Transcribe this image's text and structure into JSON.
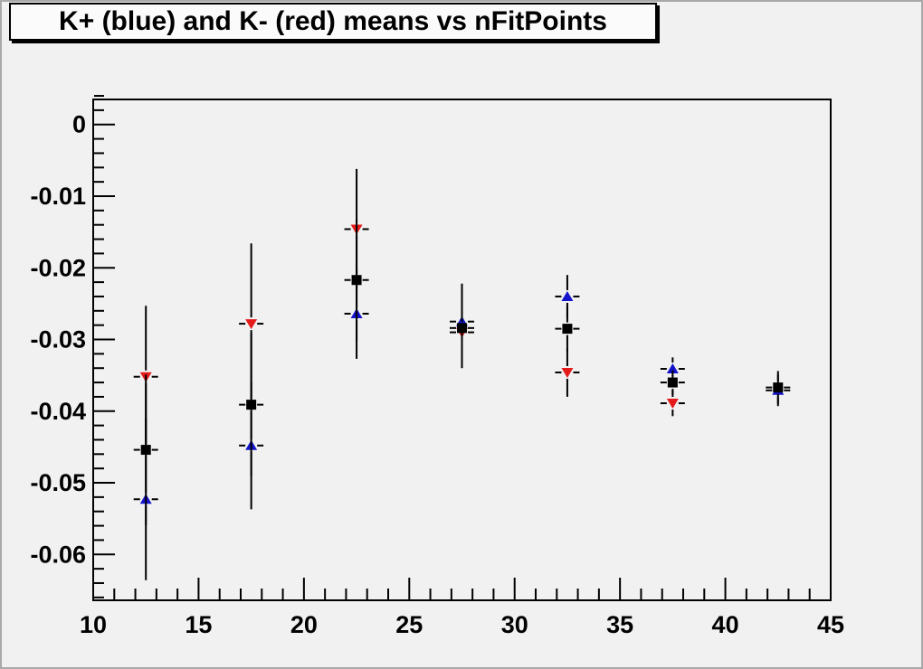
{
  "colors": {
    "canvas_bg": "#f1f1f1",
    "canvas_border": "#a9a9a9",
    "frame_line": "#000000",
    "title_bg": "#fbfbfb",
    "title_text": "#000000",
    "axis_text": "#000000",
    "error_bar": "#000000",
    "marker_blue": "#1414cc",
    "marker_red": "#e51b1b",
    "marker_black": "#000000"
  },
  "chart_data": {
    "type": "scatter",
    "title": "K+ (blue) and K- (red) means vs nFitPoints",
    "xlabel": "",
    "ylabel": "",
    "grid": false,
    "legend": "none",
    "x_axis": {
      "min": 10,
      "max": 45,
      "major_ticks": [
        10,
        15,
        20,
        25,
        30,
        35,
        40,
        45
      ],
      "major_tick_labels": [
        "10",
        "15",
        "20",
        "25",
        "30",
        "35",
        "40",
        "45"
      ],
      "minor_tick_step": 1
    },
    "y_axis": {
      "min": -0.0664,
      "max": 0.0035,
      "major_ticks": [
        0,
        -0.01,
        -0.02,
        -0.03,
        -0.04,
        -0.05,
        -0.06
      ],
      "major_tick_labels": [
        "0",
        "-0.01",
        "-0.02",
        "-0.03",
        "-0.04",
        "-0.05",
        "-0.06"
      ],
      "minor_tick_step": 0.002
    },
    "xerr": 0.55,
    "series": [
      {
        "name": "K+ (blue)",
        "marker": "triangle-up",
        "color_key": "marker_blue",
        "points": [
          {
            "x": 12.5,
            "y": -0.0523,
            "yerr": 0.0113
          },
          {
            "x": 17.5,
            "y": -0.0448,
            "yerr": 0.0089
          },
          {
            "x": 22.5,
            "y": -0.0264,
            "yerr": 0.0063
          },
          {
            "x": 27.5,
            "y": -0.0275,
            "yerr": 0.0053
          },
          {
            "x": 32.5,
            "y": -0.024,
            "yerr": 0.003
          },
          {
            "x": 37.5,
            "y": -0.0341,
            "yerr": 0.0016
          },
          {
            "x": 42.5,
            "y": -0.0371,
            "yerr": 0.0022
          }
        ]
      },
      {
        "name": "K- (red)",
        "marker": "triangle-down",
        "color_key": "marker_red",
        "points": [
          {
            "x": 12.5,
            "y": -0.0352,
            "yerr": 0.0099
          },
          {
            "x": 17.5,
            "y": -0.0278,
            "yerr": 0.0112
          },
          {
            "x": 22.5,
            "y": -0.0146,
            "yerr": 0.0084
          },
          {
            "x": 27.5,
            "y": -0.029,
            "yerr": 0.005
          },
          {
            "x": 32.5,
            "y": -0.0346,
            "yerr": 0.0034
          },
          {
            "x": 37.5,
            "y": -0.0389,
            "yerr": 0.0018
          }
        ]
      },
      {
        "name": "K mean (black squares, unlabeled)",
        "marker": "square",
        "color_key": "marker_black",
        "points": [
          {
            "x": 12.5,
            "y": -0.0454,
            "yerr": 0.0105
          },
          {
            "x": 17.5,
            "y": -0.0391,
            "yerr": 0.01
          },
          {
            "x": 22.5,
            "y": -0.0217,
            "yerr": 0.0085
          },
          {
            "x": 27.5,
            "y": -0.0284,
            "yerr": 0.0052
          },
          {
            "x": 32.5,
            "y": -0.0285,
            "yerr": 0.0032
          },
          {
            "x": 37.5,
            "y": -0.036,
            "yerr": 0.0017
          },
          {
            "x": 42.5,
            "y": -0.0367,
            "yerr": 0.0023
          }
        ]
      }
    ]
  }
}
